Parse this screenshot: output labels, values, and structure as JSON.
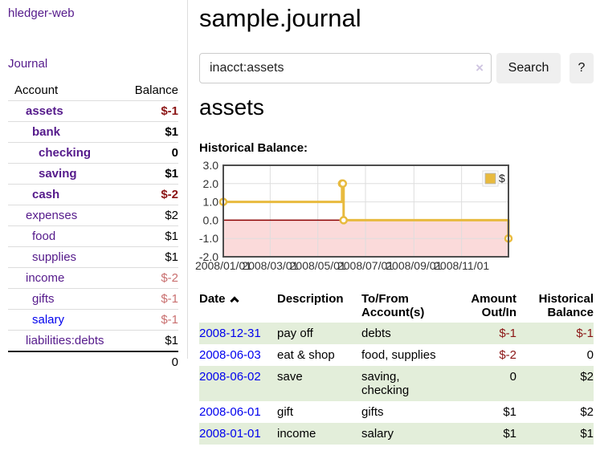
{
  "app": {
    "brand": "hledger-web",
    "nav_journal": "Journal"
  },
  "sidebar": {
    "col_account": "Account",
    "col_balance": "Balance",
    "accounts": [
      {
        "name": "assets",
        "level": 1,
        "balance": "$-1",
        "inacct": true,
        "balance_style": "neg-strong"
      },
      {
        "name": "bank",
        "level": 2,
        "balance": "$1",
        "inacct": true,
        "balance_style": "normal"
      },
      {
        "name": "checking",
        "level": 3,
        "balance": "0",
        "inacct": true,
        "balance_style": "normal"
      },
      {
        "name": "saving",
        "level": 3,
        "balance": "$1",
        "inacct": true,
        "balance_style": "normal"
      },
      {
        "name": "cash",
        "level": 2,
        "balance": "$-2",
        "inacct": true,
        "balance_style": "neg-strong"
      },
      {
        "name": "expenses",
        "level": 1,
        "balance": "$2",
        "inacct": false,
        "balance_style": "normal"
      },
      {
        "name": "food",
        "level": 2,
        "balance": "$1",
        "inacct": false,
        "balance_style": "normal"
      },
      {
        "name": "supplies",
        "level": 2,
        "balance": "$1",
        "inacct": false,
        "balance_style": "normal"
      },
      {
        "name": "income",
        "level": 1,
        "balance": "$-2",
        "inacct": false,
        "balance_style": "neg-soft"
      },
      {
        "name": "gifts",
        "level": 2,
        "balance": "$-1",
        "inacct": false,
        "balance_style": "neg-soft"
      },
      {
        "name": "salary",
        "level": 2,
        "balance": "$-1",
        "inacct": false,
        "balance_style": "neg-soft",
        "link_style": "unvisited"
      },
      {
        "name": "liabilities:debts",
        "level": 1,
        "balance": "$1",
        "inacct": false,
        "balance_style": "normal"
      }
    ],
    "total": "0"
  },
  "header": {
    "title": "sample.journal"
  },
  "search": {
    "value": "inacct:assets",
    "clear_label": "×",
    "search_button": "Search",
    "help_button": "?"
  },
  "account_page": {
    "heading": "assets",
    "chart_label": "Historical Balance:"
  },
  "chart_data": {
    "type": "line",
    "title": "Historical Balance",
    "series": [
      {
        "name": "$",
        "step": true,
        "points": [
          [
            "2008-01-01",
            1
          ],
          [
            "2008-06-01",
            2
          ],
          [
            "2008-06-02",
            2
          ],
          [
            "2008-06-03",
            0
          ],
          [
            "2008-12-31",
            -1
          ]
        ]
      }
    ],
    "xlim": [
      "2008-01-01",
      "2008-12-31"
    ],
    "ylim": [
      -2,
      3
    ],
    "x_ticks": [
      "2008/01/01",
      "2008/03/01",
      "2008/05/01",
      "2008/07/01",
      "2008/09/01",
      "2008/11/01"
    ],
    "y_ticks": [
      "3.0",
      "2.0",
      "1.0",
      "0.0",
      "-1.0",
      "-2.0"
    ],
    "grid": true,
    "legend": {
      "label": "$",
      "position": "top-right"
    },
    "colors": {
      "line": "#e8ba3e",
      "marker_fill": "#ffffff",
      "zero_line": "#8b0000",
      "negative_region": "#fbdada",
      "gridline": "#dedede",
      "plot_border": "#4d4d4d",
      "tick_label": "#333333",
      "legend_swatch": "#e8ba3e"
    }
  },
  "register": {
    "columns": {
      "date": "Date",
      "description": "Description",
      "accounts": "To/From Account(s)",
      "amount": "Amount Out/In",
      "balance": "Historical Balance"
    },
    "rows": [
      {
        "date": "2008-12-31",
        "description": "pay off",
        "accounts": "debts",
        "amount": "$-1",
        "balance": "$-1",
        "amount_neg": true,
        "balance_neg": true,
        "striped": true
      },
      {
        "date": "2008-06-03",
        "description": "eat & shop",
        "accounts": "food, supplies",
        "amount": "$-2",
        "balance": "0",
        "amount_neg": true,
        "balance_neg": false,
        "striped": false
      },
      {
        "date": "2008-06-02",
        "description": "save",
        "accounts": "saving,\nchecking",
        "amount": "0",
        "balance": "$2",
        "amount_neg": false,
        "balance_neg": false,
        "striped": true
      },
      {
        "date": "2008-06-01",
        "description": "gift",
        "accounts": "gifts",
        "amount": "$1",
        "balance": "$2",
        "amount_neg": false,
        "balance_neg": false,
        "striped": false
      },
      {
        "date": "2008-01-01",
        "description": "income",
        "accounts": "salary",
        "amount": "$1",
        "balance": "$1",
        "amount_neg": false,
        "balance_neg": false,
        "striped": true
      }
    ]
  }
}
